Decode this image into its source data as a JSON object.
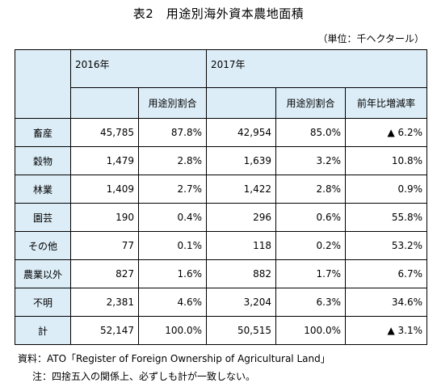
{
  "title": "表2　用途別海外資本農地面積",
  "unit": "（単位：千ヘクタール）",
  "headers": {
    "year1": "2016年",
    "year2": "2017年",
    "share1": "用途別割合",
    "share2": "用途別割合",
    "change": "前年比増減率"
  },
  "rows": [
    {
      "label": "畜産",
      "v2016": "45,785",
      "s2016": "87.8%",
      "v2017": "42,954",
      "s2017": "85.0%",
      "change": "▲ 6.2%"
    },
    {
      "label": "穀物",
      "v2016": "1,479",
      "s2016": "2.8%",
      "v2017": "1,639",
      "s2017": "3.2%",
      "change": "10.8%"
    },
    {
      "label": "林業",
      "v2016": "1,409",
      "s2016": "2.7%",
      "v2017": "1,422",
      "s2017": "2.8%",
      "change": "0.9%"
    },
    {
      "label": "園芸",
      "v2016": "190",
      "s2016": "0.4%",
      "v2017": "296",
      "s2017": "0.6%",
      "change": "55.8%"
    },
    {
      "label": "その他",
      "v2016": "77",
      "s2016": "0.1%",
      "v2017": "118",
      "s2017": "0.2%",
      "change": "53.2%"
    },
    {
      "label": "農業以外",
      "v2016": "827",
      "s2016": "1.6%",
      "v2017": "882",
      "s2017": "1.7%",
      "change": "6.7%"
    },
    {
      "label": "不明",
      "v2016": "2,381",
      "s2016": "4.6%",
      "v2017": "3,204",
      "s2017": "6.3%",
      "change": "34.6%"
    },
    {
      "label": "計",
      "v2016": "52,147",
      "s2016": "100.0%",
      "v2017": "50,515",
      "s2017": "100.0%",
      "change": "▲ 3.1%"
    }
  ],
  "footnotes": {
    "source": "資料：ATO「Register of Foreign Ownership of Agricultural Land」",
    "note": "注：四捨五入の関係上、必ずしも計が一致しない。"
  },
  "colors": {
    "header_fill": "#dcedf7",
    "border": "#000000"
  }
}
